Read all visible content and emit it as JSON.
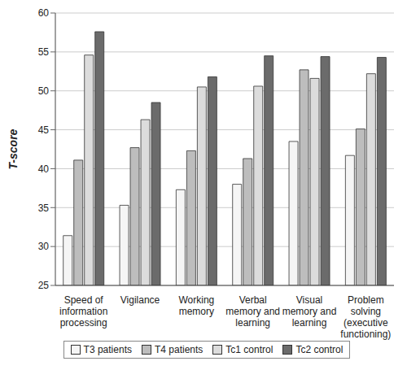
{
  "chart_data": {
    "type": "bar",
    "y_label": "T-score",
    "categories": [
      "Speed of information processing",
      "Vigilance",
      "Working memory",
      "Verbal memory and learning",
      "Visual memory and learning",
      "Problem solving (executive functioning)"
    ],
    "series": [
      {
        "name": "T3 patients",
        "color": "#f5f5f5",
        "values": [
          31.4,
          35.3,
          37.3,
          38.0,
          43.5,
          41.7
        ]
      },
      {
        "name": "T4 patients",
        "color": "#bdbdbd",
        "values": [
          41.1,
          42.7,
          42.3,
          41.3,
          52.7,
          45.1
        ]
      },
      {
        "name": "Tc1 control",
        "color": "#dcdcdc",
        "values": [
          54.6,
          46.3,
          50.5,
          50.6,
          51.6,
          52.2
        ]
      },
      {
        "name": "Tc2 control",
        "color": "#6b6b6b",
        "values": [
          57.6,
          48.5,
          51.8,
          54.5,
          54.4,
          54.3
        ]
      }
    ],
    "ylim": [
      25,
      60
    ],
    "yticks": [
      25,
      30,
      35,
      40,
      45,
      50,
      55,
      60
    ],
    "grid": true,
    "legend": "bottom"
  }
}
